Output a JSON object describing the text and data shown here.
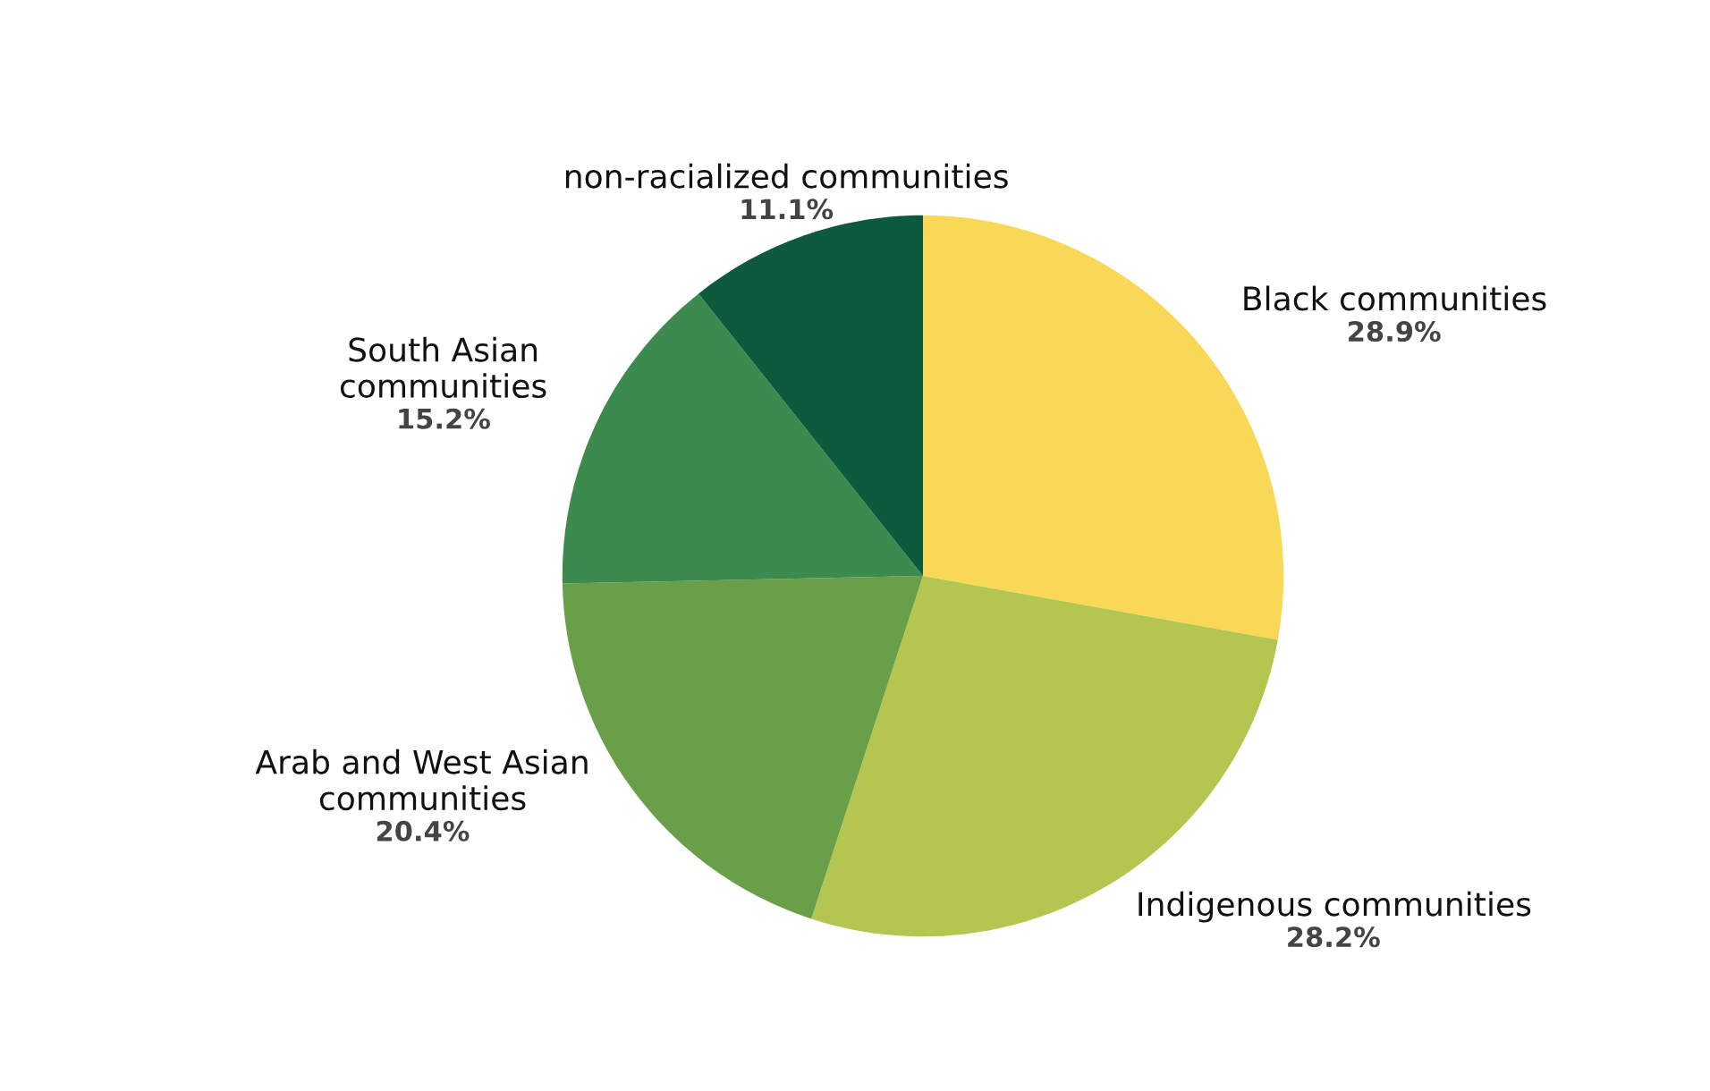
{
  "chart_data": {
    "type": "pie",
    "categories": [
      "Black communities",
      "Indigenous communities",
      "Arab and West Asian\ncommunities",
      "South Asian\ncommunities",
      "non-racialized communities"
    ],
    "values": [
      28.9,
      28.2,
      20.4,
      15.2,
      11.1
    ],
    "value_labels": [
      "28.9%",
      "28.2%",
      "20.4%",
      "15.2%",
      "11.1%"
    ],
    "colors": [
      "#f9d857",
      "#b5c650",
      "#6a9f4a",
      "#3d8a4f",
      "#0d5a3c"
    ]
  }
}
